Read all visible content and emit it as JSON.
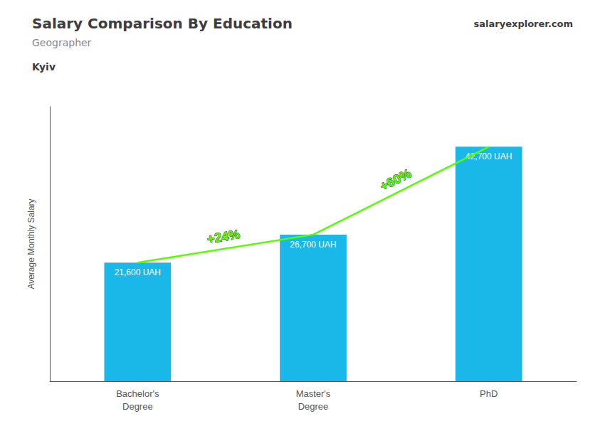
{
  "chart_data": {
    "type": "bar",
    "title": "Salary Comparison By Education",
    "subtitle": "Geographer",
    "city": "Kyiv",
    "brand": "salaryexplorer.com",
    "ylabel": "Average Monthly Salary",
    "categories": [
      "Bachelor's\nDegree",
      "Master's\nDegree",
      "PhD"
    ],
    "values": [
      21600,
      26700,
      42700
    ],
    "value_labels": [
      "21,600 UAH",
      "26,700 UAH",
      "42,700 UAH"
    ],
    "data_labels": true,
    "color": "#1ab8e8",
    "ylim": [
      0,
      50000
    ],
    "yticks": [],
    "tick_labels": "x",
    "grid": false,
    "arrows": [
      {
        "from": "Bachelor's\nDegree",
        "to": "Master's\nDegree",
        "label": "+24%",
        "color": "#55ff00"
      },
      {
        "from": "Master's\nDegree",
        "to": "PhD",
        "label": "+60%",
        "color": "#55ff00"
      }
    ]
  }
}
